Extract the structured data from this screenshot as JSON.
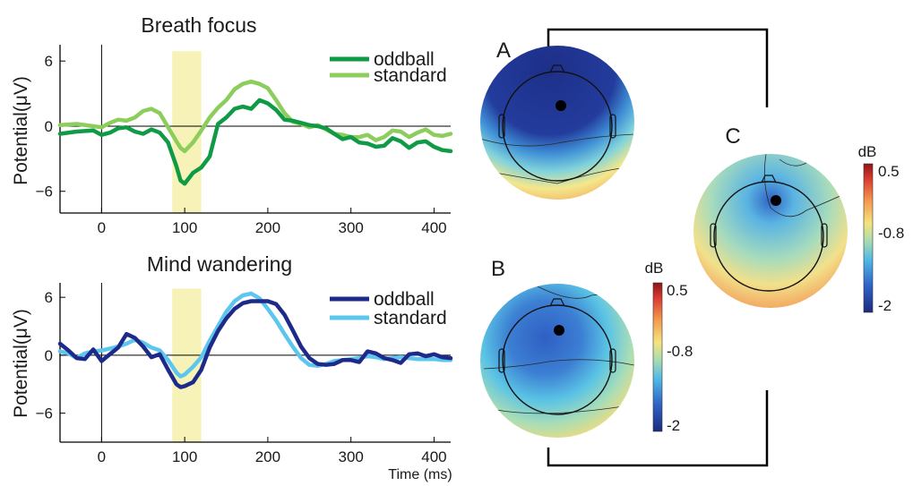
{
  "chart_data": [
    {
      "type": "line",
      "title": "Breath focus",
      "xlabel": "",
      "ylabel": "Potential(μV)",
      "xlim": [
        -50,
        420
      ],
      "ylim": [
        -8,
        7.5
      ],
      "xticks": [
        0,
        100,
        200,
        300,
        400
      ],
      "yticks": [
        6,
        0,
        -6
      ],
      "ytick_labels": [
        "6",
        "0",
        "−6"
      ],
      "highlight_x": [
        85,
        120
      ],
      "series": [
        {
          "name": "oddball",
          "color": "#0f9a45",
          "x": [
            -50,
            -30,
            -10,
            0,
            10,
            20,
            30,
            40,
            50,
            60,
            70,
            80,
            90,
            95,
            100,
            110,
            120,
            130,
            140,
            150,
            160,
            170,
            180,
            190,
            200,
            210,
            220,
            230,
            240,
            250,
            260,
            270,
            280,
            290,
            300,
            310,
            320,
            330,
            340,
            350,
            360,
            370,
            380,
            390,
            400,
            410,
            420
          ],
          "y": [
            -0.7,
            -0.5,
            -0.4,
            -0.8,
            -0.6,
            -0.2,
            -0.1,
            -0.5,
            -0.7,
            -0.3,
            -0.6,
            -1.5,
            -3.7,
            -5.0,
            -5.3,
            -4.3,
            -3.8,
            -2.8,
            0.2,
            0.8,
            1.6,
            1.8,
            1.6,
            2.4,
            2.1,
            1.5,
            0.6,
            0.5,
            0.3,
            0.1,
            0.0,
            -0.2,
            -0.7,
            -1.2,
            -1.0,
            -1.5,
            -1.6,
            -1.9,
            -1.8,
            -1.1,
            -1.4,
            -2.0,
            -1.5,
            -1.4,
            -1.9,
            -2.2,
            -2.3
          ]
        },
        {
          "name": "standard",
          "color": "#8ccd5b",
          "x": [
            -50,
            -30,
            -10,
            0,
            10,
            20,
            30,
            40,
            50,
            60,
            70,
            80,
            90,
            95,
            100,
            110,
            120,
            130,
            140,
            150,
            160,
            170,
            180,
            190,
            200,
            210,
            220,
            230,
            240,
            250,
            260,
            270,
            280,
            290,
            300,
            310,
            320,
            330,
            340,
            350,
            360,
            370,
            380,
            390,
            400,
            410,
            420
          ],
          "y": [
            0.1,
            0.2,
            0.0,
            -0.1,
            0.3,
            0.6,
            0.5,
            0.8,
            1.4,
            1.6,
            1.2,
            -0.1,
            -1.4,
            -2.0,
            -2.3,
            -1.5,
            -0.4,
            0.8,
            1.7,
            2.4,
            3.4,
            3.9,
            4.1,
            3.9,
            3.5,
            2.4,
            1.2,
            0.4,
            0.2,
            -0.1,
            0.1,
            -0.3,
            -0.7,
            -0.8,
            -1.0,
            -1.0,
            -0.8,
            -1.3,
            -1.0,
            -0.4,
            -0.5,
            -1.0,
            -0.6,
            -0.3,
            -0.8,
            -0.9,
            -0.7
          ]
        }
      ]
    },
    {
      "type": "line",
      "title": "Mind wandering",
      "xlabel": "Time (ms)",
      "ylabel": "Potential(μV)",
      "xlim": [
        -50,
        420
      ],
      "ylim": [
        -9,
        7.5
      ],
      "xticks": [
        0,
        100,
        200,
        300,
        400
      ],
      "yticks": [
        6,
        0,
        -6
      ],
      "ytick_labels": [
        "6",
        "0",
        "−6"
      ],
      "highlight_x": [
        85,
        120
      ],
      "series": [
        {
          "name": "oddball",
          "color": "#1e2a8a",
          "x": [
            -50,
            -40,
            -30,
            -20,
            -10,
            0,
            10,
            20,
            30,
            40,
            50,
            60,
            70,
            80,
            90,
            95,
            100,
            110,
            120,
            130,
            140,
            150,
            160,
            170,
            180,
            190,
            200,
            210,
            220,
            230,
            240,
            250,
            260,
            270,
            280,
            290,
            300,
            310,
            320,
            330,
            340,
            350,
            360,
            370,
            380,
            390,
            400,
            410,
            420
          ],
          "y": [
            1.2,
            0.5,
            -0.3,
            -0.4,
            0.6,
            -0.6,
            0.1,
            0.8,
            2.2,
            1.8,
            0.9,
            -0.2,
            0.1,
            -1.5,
            -3.0,
            -3.3,
            -3.2,
            -2.8,
            -1.5,
            0.8,
            2.5,
            3.8,
            4.8,
            5.4,
            5.6,
            5.6,
            5.6,
            5.3,
            4.2,
            2.6,
            0.9,
            -0.3,
            -0.9,
            -1.0,
            -0.9,
            -0.5,
            -0.5,
            -0.7,
            0.4,
            0.2,
            -0.3,
            -0.5,
            -0.8,
            0.1,
            0.2,
            -0.1,
            0.1,
            -0.2,
            -0.3
          ]
        },
        {
          "name": "standard",
          "color": "#5dc6ef",
          "x": [
            -50,
            -40,
            -30,
            -20,
            -10,
            0,
            10,
            20,
            30,
            40,
            50,
            60,
            70,
            80,
            90,
            95,
            100,
            110,
            120,
            130,
            140,
            150,
            160,
            170,
            180,
            190,
            200,
            210,
            220,
            230,
            240,
            250,
            260,
            270,
            280,
            290,
            300,
            310,
            320,
            330,
            340,
            350,
            360,
            370,
            380,
            390,
            400,
            410,
            420
          ],
          "y": [
            0.4,
            0.2,
            -0.3,
            0.2,
            0.4,
            0.5,
            0.7,
            0.9,
            1.2,
            1.6,
            1.3,
            0.8,
            0.5,
            -0.5,
            -1.8,
            -2.2,
            -2.0,
            -1.2,
            -0.2,
            1.5,
            3.0,
            4.5,
            5.6,
            6.2,
            6.4,
            5.9,
            4.8,
            3.6,
            2.2,
            0.9,
            -0.3,
            -1.0,
            -1.1,
            -0.9,
            -0.6,
            -0.5,
            -0.4,
            -0.3,
            -0.1,
            -0.2,
            -0.4,
            -0.3,
            -0.2,
            -0.3,
            -0.4,
            -0.4,
            -0.4,
            -0.5,
            -0.5
          ]
        }
      ]
    },
    {
      "type": "heatmap",
      "panels": [
        {
          "label": "A",
          "colorbar": null
        },
        {
          "label": "B",
          "colorbar": {
            "title": "dB",
            "ticks": [
              "0.5",
              "-0.8",
              "-2"
            ]
          }
        },
        {
          "label": "C",
          "colorbar": {
            "title": "dB",
            "ticks": [
              "0.5",
              "-0.8",
              "-2"
            ]
          }
        }
      ],
      "colorscale_range_db": [
        -2.2,
        0.7
      ],
      "colors": [
        "#1c2f86",
        "#2f63c6",
        "#4fb4e6",
        "#9fdcc3",
        "#f5e98a",
        "#f3b05a",
        "#e4523f",
        "#a61d1d"
      ]
    }
  ]
}
